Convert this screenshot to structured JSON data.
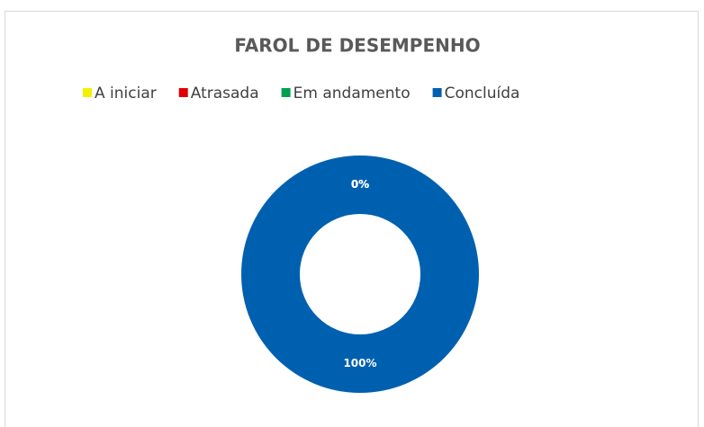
{
  "chart_data": {
    "type": "donut",
    "title": "FAROL DE DESEMPENHO",
    "categories": [
      "A iniciar",
      "Atrasada",
      "Em andamento",
      "Concluída"
    ],
    "values": [
      0,
      0,
      0,
      100
    ],
    "value_labels": [
      "0%",
      "0%",
      "0%",
      "100%"
    ],
    "colors": [
      "#f2f200",
      "#e00000",
      "#00a050",
      "#0060b0"
    ],
    "legend": "top"
  }
}
